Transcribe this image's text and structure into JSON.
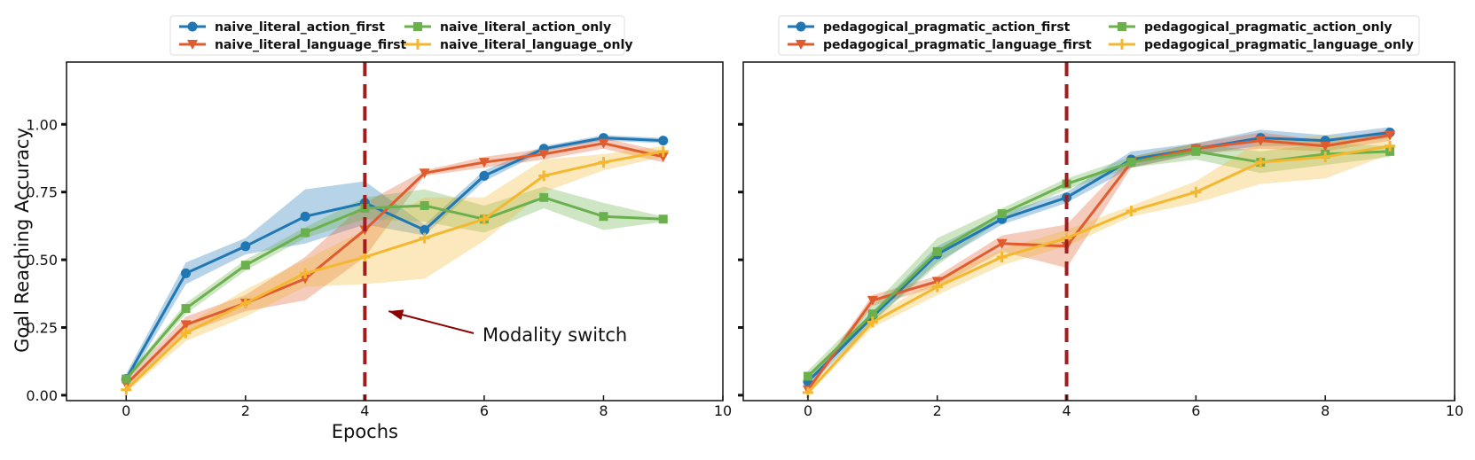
{
  "chart_data": [
    {
      "type": "line",
      "title": "",
      "xlabel": "Epochs",
      "ylabel": "Goal Reaching Accuracy",
      "xlim": [
        -1,
        10
      ],
      "ylim": [
        -0.02,
        1.23
      ],
      "xticks": [
        0,
        2,
        4,
        6,
        8,
        10
      ],
      "xtick_labels": [
        "0",
        "2",
        "4",
        "6",
        "8",
        "10"
      ],
      "yticks": [
        0.0,
        0.25,
        0.5,
        0.75,
        1.0
      ],
      "ytick_labels": [
        "0.00",
        "0.25",
        "0.50",
        "0.75",
        "1.00"
      ],
      "show_ytick_labels": true,
      "legend_position": "top-center",
      "vline": {
        "x": 4,
        "color": "#a11d1d"
      },
      "annotation": {
        "text": "Modality switch",
        "points_to_x": 4.4,
        "points_to_y": 0.31,
        "color": "#8b0000"
      },
      "x": [
        0,
        1,
        2,
        3,
        4,
        5,
        6,
        7,
        8,
        9
      ],
      "series": [
        {
          "name": "naive_literal_action_first",
          "color": "#1f77b4",
          "marker": "circle",
          "values": [
            0.06,
            0.45,
            0.55,
            0.66,
            0.71,
            0.61,
            0.81,
            0.91,
            0.95,
            0.94
          ],
          "band": [
            0.02,
            0.04,
            0.03,
            0.1,
            0.08,
            0.02,
            0.02,
            0.01,
            0.01,
            0.01
          ]
        },
        {
          "name": "naive_literal_language_first",
          "color": "#e05c2e",
          "marker": "triangle-down",
          "values": [
            0.04,
            0.26,
            0.34,
            0.43,
            0.61,
            0.82,
            0.86,
            0.89,
            0.93,
            0.88
          ],
          "band": [
            0.02,
            0.03,
            0.03,
            0.08,
            0.1,
            0.01,
            0.02,
            0.02,
            0.02,
            0.02
          ]
        },
        {
          "name": "naive_literal_action_only",
          "color": "#6ab04c",
          "marker": "square",
          "values": [
            0.06,
            0.32,
            0.48,
            0.6,
            0.69,
            0.7,
            0.65,
            0.73,
            0.66,
            0.65
          ],
          "band": [
            0.01,
            0.02,
            0.02,
            0.02,
            0.04,
            0.06,
            0.05,
            0.04,
            0.05,
            0.01
          ]
        },
        {
          "name": "naive_literal_language_only",
          "color": "#f4b830",
          "marker": "plus",
          "values": [
            0.02,
            0.23,
            0.34,
            0.45,
            0.51,
            0.58,
            0.65,
            0.81,
            0.86,
            0.9
          ],
          "band": [
            0.01,
            0.03,
            0.05,
            0.05,
            0.1,
            0.15,
            0.08,
            0.06,
            0.03,
            0.02
          ]
        }
      ]
    },
    {
      "type": "line",
      "title": "",
      "xlabel": "",
      "ylabel": "",
      "xlim": [
        -1,
        10
      ],
      "ylim": [
        -0.02,
        1.23
      ],
      "xticks": [
        0,
        2,
        4,
        6,
        8,
        10
      ],
      "xtick_labels": [
        "0",
        "2",
        "4",
        "6",
        "8",
        "10"
      ],
      "yticks": [
        0.0,
        0.25,
        0.5,
        0.75,
        1.0
      ],
      "ytick_labels": [
        "",
        "",
        "",
        "",
        ""
      ],
      "show_ytick_labels": false,
      "legend_position": "top-center",
      "vline": {
        "x": 4,
        "color": "#a11d1d"
      },
      "x": [
        0,
        1,
        2,
        3,
        4,
        5,
        6,
        7,
        8,
        9
      ],
      "series": [
        {
          "name": "pedagogical_pragmatic_action_first",
          "color": "#1f77b4",
          "marker": "circle",
          "values": [
            0.05,
            0.29,
            0.52,
            0.65,
            0.73,
            0.87,
            0.91,
            0.95,
            0.94,
            0.97
          ],
          "band": [
            0.02,
            0.02,
            0.03,
            0.02,
            0.02,
            0.03,
            0.02,
            0.03,
            0.02,
            0.02
          ]
        },
        {
          "name": "pedagogical_pragmatic_language_first",
          "color": "#e05c2e",
          "marker": "triangle-down",
          "values": [
            0.02,
            0.35,
            0.42,
            0.56,
            0.55,
            0.86,
            0.91,
            0.94,
            0.92,
            0.96
          ],
          "band": [
            0.01,
            0.02,
            0.02,
            0.03,
            0.08,
            0.02,
            0.02,
            0.03,
            0.02,
            0.02
          ]
        },
        {
          "name": "pedagogical_pragmatic_action_only",
          "color": "#6ab04c",
          "marker": "square",
          "values": [
            0.07,
            0.3,
            0.53,
            0.67,
            0.78,
            0.86,
            0.9,
            0.86,
            0.89,
            0.9
          ],
          "band": [
            0.02,
            0.03,
            0.05,
            0.02,
            0.02,
            0.02,
            0.03,
            0.04,
            0.04,
            0.02
          ]
        },
        {
          "name": "pedagogical_pragmatic_language_only",
          "color": "#f4b830",
          "marker": "plus",
          "values": [
            0.01,
            0.27,
            0.4,
            0.51,
            0.58,
            0.68,
            0.75,
            0.86,
            0.88,
            0.92
          ],
          "band": [
            0.01,
            0.02,
            0.03,
            0.03,
            0.03,
            0.02,
            0.04,
            0.08,
            0.08,
            0.03
          ]
        }
      ]
    }
  ]
}
